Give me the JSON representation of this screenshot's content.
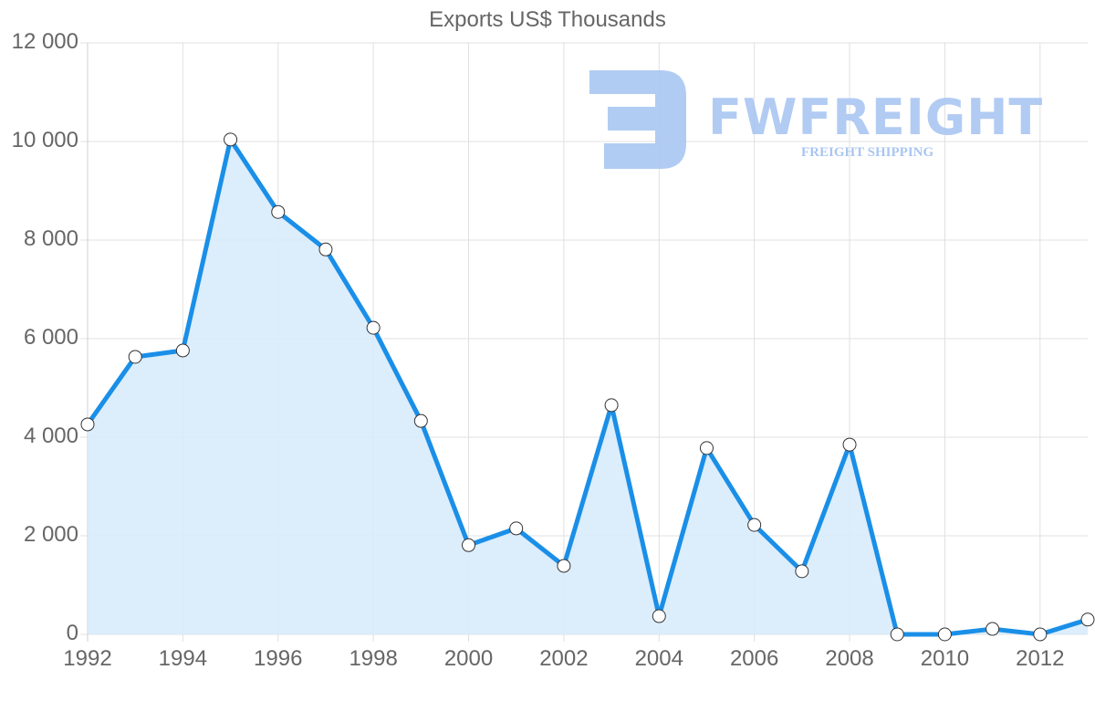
{
  "chart_data": {
    "type": "area",
    "title": "Exports US$ Thousands",
    "xlabel": "",
    "ylabel": "",
    "x": [
      1992,
      1993,
      1994,
      1995,
      1996,
      1997,
      1998,
      1999,
      2000,
      2001,
      2002,
      2003,
      2004,
      2005,
      2006,
      2007,
      2008,
      2009,
      2010,
      2011,
      2012,
      2013
    ],
    "series": [
      {
        "name": "Exports US$ Thousands",
        "values": [
          4260,
          5630,
          5760,
          10040,
          8570,
          7810,
          6220,
          4330,
          1810,
          2150,
          1390,
          4650,
          370,
          3780,
          2220,
          1280,
          3850,
          0,
          0,
          110,
          0,
          300
        ]
      }
    ],
    "ylim": [
      0,
      12000
    ],
    "yticks": [
      "0",
      "2 000",
      "4 000",
      "6 000",
      "8 000",
      "10 000",
      "12 000"
    ],
    "xticks": [
      "1992",
      "1994",
      "1996",
      "1998",
      "2000",
      "2002",
      "2004",
      "2006",
      "2008",
      "2010",
      "2012"
    ],
    "grid": true,
    "legend": "none",
    "colors": {
      "line": "#1a8fe8",
      "fill": "#d8ebfb",
      "marker_fill": "#ffffff",
      "marker_stroke": "#333333",
      "grid": "#e0e0e0"
    }
  },
  "watermark": {
    "brand": "FWFREIGHT",
    "tagline": "FREIGHT SHIPPING"
  }
}
